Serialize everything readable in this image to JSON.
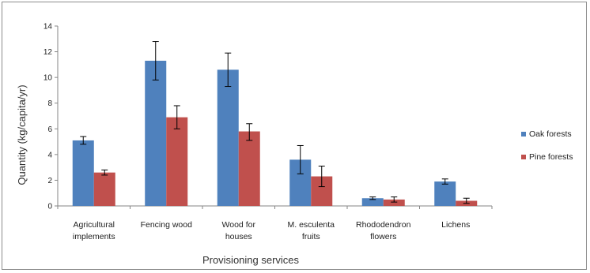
{
  "chart_data": {
    "type": "bar",
    "xlabel": "Provisioning services",
    "ylabel": "Quantity (kg/capita/yr)",
    "ylim": [
      0,
      14
    ],
    "yticks": [
      0,
      2,
      4,
      6,
      8,
      10,
      12,
      14
    ],
    "grid": false,
    "legend_position": "right",
    "categories": [
      [
        "Agricultural",
        "implements"
      ],
      [
        "Fencing wood"
      ],
      [
        "Wood for",
        "houses"
      ],
      [
        "M. esculenta",
        "fruits"
      ],
      [
        "Rhododendron",
        "flowers"
      ],
      [
        "Lichens"
      ]
    ],
    "series": [
      {
        "name": "Oak forests",
        "color": "#4f81bd",
        "values": [
          5.1,
          11.3,
          10.6,
          3.6,
          0.6,
          1.9
        ],
        "err_low": [
          4.8,
          9.8,
          9.3,
          2.5,
          0.5,
          1.7
        ],
        "err_high": [
          5.4,
          12.8,
          11.9,
          4.7,
          0.7,
          2.1
        ]
      },
      {
        "name": "Pine forests",
        "color": "#c0504d",
        "values": [
          2.6,
          6.9,
          5.8,
          2.3,
          0.5,
          0.4
        ],
        "err_low": [
          2.4,
          6.0,
          5.1,
          1.5,
          0.3,
          0.2
        ],
        "err_high": [
          2.8,
          7.8,
          6.4,
          3.1,
          0.7,
          0.6
        ]
      }
    ]
  }
}
